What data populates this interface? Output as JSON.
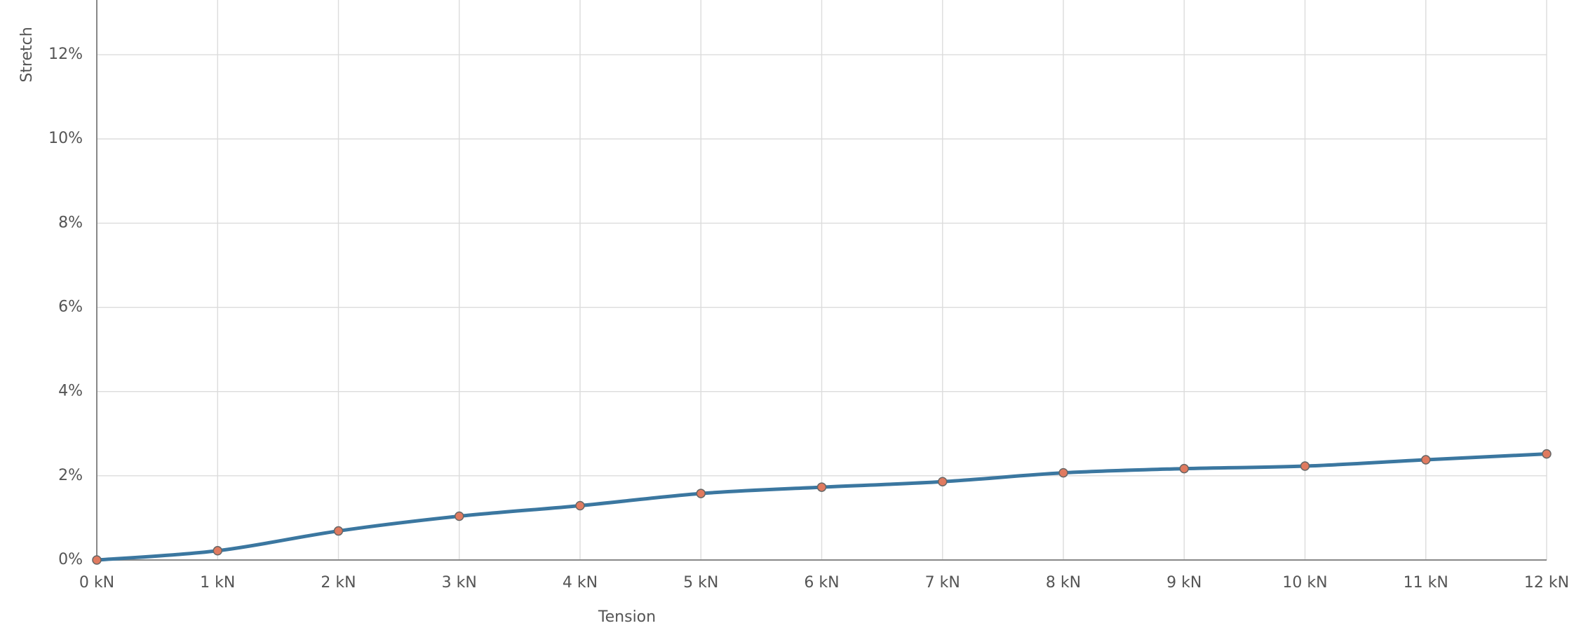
{
  "chart_data": {
    "type": "line",
    "x_axis_label": "Tension",
    "y_axis_label": "Stretch",
    "x": [
      0,
      1,
      2,
      3,
      4,
      5,
      6,
      7,
      8,
      9,
      10,
      11,
      12
    ],
    "series": [
      {
        "color": "#3b77a0",
        "marker_color": "#e07a5f",
        "values": [
          0,
          0.22,
          0.69,
          1.04,
          1.29,
          1.58,
          1.73,
          1.86,
          2.07,
          2.17,
          2.23,
          2.38,
          2.52
        ]
      }
    ],
    "xlim": [
      0,
      12
    ],
    "ylim": [
      0,
      13.3
    ],
    "xticks": [
      {
        "value": 0,
        "label": "0 kN"
      },
      {
        "value": 1,
        "label": "1 kN"
      },
      {
        "value": 2,
        "label": "2 kN"
      },
      {
        "value": 3,
        "label": "3 kN"
      },
      {
        "value": 4,
        "label": "4 kN"
      },
      {
        "value": 5,
        "label": "5 kN"
      },
      {
        "value": 6,
        "label": "6 kN"
      },
      {
        "value": 7,
        "label": "7 kN"
      },
      {
        "value": 8,
        "label": "8 kN"
      },
      {
        "value": 9,
        "label": "9 kN"
      },
      {
        "value": 10,
        "label": "10 kN"
      },
      {
        "value": 11,
        "label": "11 kN"
      },
      {
        "value": 12,
        "label": "12 kN"
      }
    ],
    "yticks": [
      {
        "value": 0,
        "label": "0%"
      },
      {
        "value": 2,
        "label": "2%"
      },
      {
        "value": 4,
        "label": "4%"
      },
      {
        "value": 6,
        "label": "6%"
      },
      {
        "value": 8,
        "label": "8%"
      },
      {
        "value": 10,
        "label": "10%"
      },
      {
        "value": 12,
        "label": "12%"
      }
    ],
    "grid": true
  }
}
